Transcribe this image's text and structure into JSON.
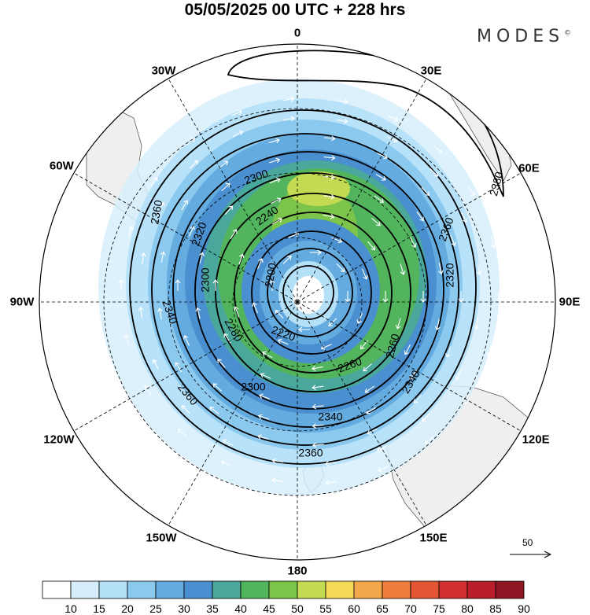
{
  "title": "05/05/2025  00 UTC  + 228 hrs",
  "brand": "MODES",
  "brand_mark": "©",
  "longitude_labels": [
    {
      "key": "0",
      "text": "0"
    },
    {
      "key": "30E",
      "text": "30E"
    },
    {
      "key": "60E",
      "text": "60E"
    },
    {
      "key": "90E",
      "text": "90E"
    },
    {
      "key": "120E",
      "text": "120E"
    },
    {
      "key": "150E",
      "text": "150E"
    },
    {
      "key": "180",
      "text": "180"
    },
    {
      "key": "150W",
      "text": "150W"
    },
    {
      "key": "120W",
      "text": "120W"
    },
    {
      "key": "90W",
      "text": "90W"
    },
    {
      "key": "60W",
      "text": "60W"
    },
    {
      "key": "30W",
      "text": "30W"
    }
  ],
  "contour_labels": [
    "2200",
    "2220",
    "2240",
    "2260",
    "2280",
    "2300",
    "2320",
    "2340",
    "2360",
    "2380"
  ],
  "vector_reference": "50",
  "colorbar": {
    "labels": [
      "10",
      "15",
      "20",
      "25",
      "30",
      "35",
      "40",
      "45",
      "50",
      "55",
      "60",
      "65",
      "70",
      "75",
      "80",
      "85",
      "90"
    ],
    "colors": [
      "#ffffff",
      "#d6eefb",
      "#b4e0f8",
      "#8cc9ef",
      "#64abe0",
      "#4a8fcf",
      "#4aa79b",
      "#52b55e",
      "#7cc44a",
      "#c3db52",
      "#f4d957",
      "#f2a84a",
      "#ee7c3c",
      "#e45534",
      "#d33031",
      "#b81f2b",
      "#8c1722"
    ]
  },
  "map": {
    "projection": "south polar stereographic",
    "field": "wind speed with streamline arrows and geopotential height contours",
    "land_color": "#f0f0f0",
    "coast_color": "#555555",
    "contour_color": "#000000"
  }
}
